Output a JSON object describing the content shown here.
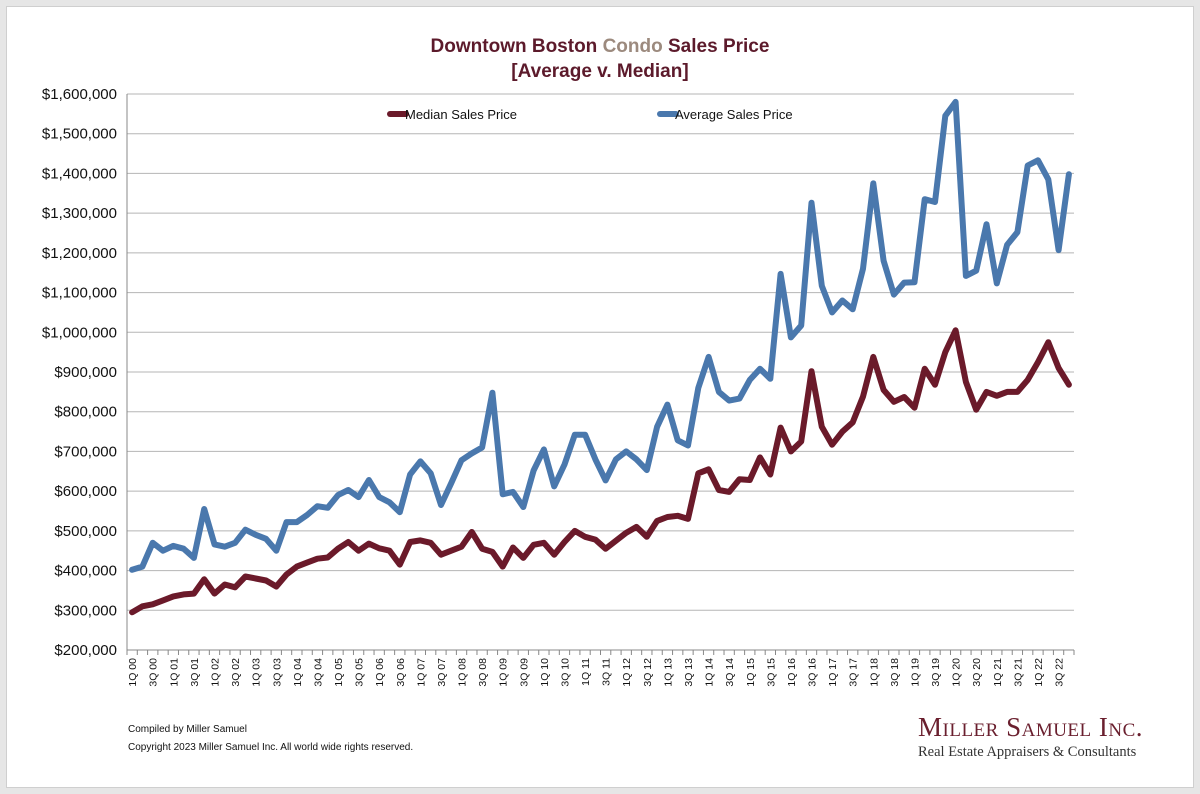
{
  "title": {
    "part1": "Downtown Boston ",
    "part2": "Condo",
    "part3": " Sales Price",
    "line2": "[Average v. Median]"
  },
  "footer": {
    "compiled": "Compiled by Miller Samuel",
    "copyright": "Copyright 2023 Miller Samuel Inc.  All world wide rights reserved."
  },
  "logo": {
    "name": "Miller Samuel Inc.",
    "tagline": "Real Estate Appraisers & Consultants"
  },
  "colors": {
    "median": "#6b1a2a",
    "average": "#4a78ad",
    "grid": "#b5b5b5",
    "title": "#5c1a2b",
    "title_accent": "#9c8a7e"
  },
  "chart_data": {
    "type": "line",
    "title": "Downtown Boston Condo Sales Price [Average v. Median]",
    "xlabel": "",
    "ylabel": "",
    "ylim": [
      200000,
      1600000
    ],
    "y_ticks": [
      200000,
      300000,
      400000,
      500000,
      600000,
      700000,
      800000,
      900000,
      1000000,
      1100000,
      1200000,
      1300000,
      1400000,
      1500000,
      1600000
    ],
    "y_tick_labels": [
      "$200,000",
      "$300,000",
      "$400,000",
      "$500,000",
      "$600,000",
      "$700,000",
      "$800,000",
      "$900,000",
      "$1,000,000",
      "$1,100,000",
      "$1,200,000",
      "$1,300,000",
      "$1,400,000",
      "$1,500,000",
      "$1,600,000"
    ],
    "grid": true,
    "legend_position": "top",
    "x": [
      "1Q 00",
      "2Q 00",
      "3Q 00",
      "4Q 00",
      "1Q 01",
      "2Q 01",
      "3Q 01",
      "4Q 01",
      "1Q 02",
      "2Q 02",
      "3Q 02",
      "4Q 02",
      "1Q 03",
      "2Q 03",
      "3Q 03",
      "4Q 03",
      "1Q 04",
      "2Q 04",
      "3Q 04",
      "4Q 04",
      "1Q 05",
      "2Q 05",
      "3Q 05",
      "4Q 05",
      "1Q 06",
      "2Q 06",
      "3Q 06",
      "4Q 06",
      "1Q 07",
      "2Q 07",
      "3Q 07",
      "4Q 07",
      "1Q 08",
      "2Q 08",
      "3Q 08",
      "4Q 08",
      "1Q 09",
      "2Q 09",
      "3Q 09",
      "4Q 09",
      "1Q 10",
      "2Q 10",
      "3Q 10",
      "4Q 10",
      "1Q 11",
      "2Q 11",
      "3Q 11",
      "4Q 11",
      "1Q 12",
      "2Q 12",
      "3Q 12",
      "4Q 12",
      "1Q 13",
      "2Q 13",
      "3Q 13",
      "4Q 13",
      "1Q 14",
      "2Q 14",
      "3Q 14",
      "4Q 14",
      "1Q 15",
      "2Q 15",
      "3Q 15",
      "4Q 15",
      "1Q 16",
      "2Q 16",
      "3Q 16",
      "4Q 16",
      "1Q 17",
      "2Q 17",
      "3Q 17",
      "4Q 17",
      "1Q 18",
      "2Q 18",
      "3Q 18",
      "4Q 18",
      "1Q 19",
      "2Q 19",
      "3Q 19",
      "4Q 19",
      "1Q 20",
      "2Q 20",
      "3Q 20",
      "4Q 20",
      "1Q 21",
      "2Q 21",
      "3Q 21",
      "4Q 21",
      "1Q 22",
      "2Q 22",
      "3Q 22",
      "4Q 22"
    ],
    "x_tick_labels": [
      "1Q 00",
      "3Q 00",
      "1Q 01",
      "3Q 01",
      "1Q 02",
      "3Q 02",
      "1Q 03",
      "3Q 03",
      "1Q 04",
      "3Q 04",
      "1Q 05",
      "3Q 05",
      "1Q 06",
      "3Q 06",
      "1Q 07",
      "3Q 07",
      "1Q 08",
      "3Q 08",
      "1Q 09",
      "3Q 09",
      "1Q 10",
      "3Q 10",
      "1Q 11",
      "3Q 11",
      "1Q 12",
      "3Q 12",
      "1Q 13",
      "3Q 13",
      "1Q 14",
      "3Q 14",
      "1Q 15",
      "3Q 15",
      "1Q 16",
      "3Q 16",
      "1Q 17",
      "3Q 17",
      "1Q 18",
      "3Q 18",
      "1Q 19",
      "3Q 19",
      "1Q 20",
      "3Q 20",
      "1Q 21",
      "3Q 21",
      "1Q 22",
      "3Q 22"
    ],
    "series": [
      {
        "name": "Median Sales Price",
        "values": [
          295000,
          310000,
          315000,
          325000,
          335000,
          340000,
          342000,
          378000,
          342000,
          365000,
          358000,
          385000,
          380000,
          375000,
          360000,
          390000,
          410000,
          420000,
          430000,
          433000,
          455000,
          472000,
          450000,
          468000,
          456000,
          450000,
          415000,
          472000,
          476000,
          470000,
          440000,
          450000,
          460000,
          497000,
          455000,
          447000,
          410000,
          458000,
          432000,
          465000,
          470000,
          440000,
          472000,
          500000,
          485000,
          478000,
          455000,
          475000,
          495000,
          510000,
          485000,
          525000,
          535000,
          538000,
          530000,
          645000,
          655000,
          603000,
          598000,
          630000,
          628000,
          685000,
          642000,
          760000,
          700000,
          725000,
          902000,
          762000,
          717000,
          750000,
          773000,
          838000,
          938000,
          855000,
          825000,
          837000,
          810000,
          908000,
          868000,
          950000,
          1005000,
          875000,
          805000,
          850000,
          840000,
          850000,
          850000,
          880000,
          925000,
          975000,
          910000,
          868000
        ]
      },
      {
        "name": "Average Sales Price",
        "values": [
          402000,
          410000,
          470000,
          450000,
          462000,
          455000,
          432000,
          555000,
          466000,
          460000,
          470000,
          503000,
          490000,
          480000,
          450000,
          522000,
          522000,
          540000,
          562000,
          558000,
          590000,
          603000,
          585000,
          628000,
          585000,
          572000,
          547000,
          642000,
          675000,
          645000,
          565000,
          620000,
          678000,
          695000,
          710000,
          848000,
          592000,
          598000,
          560000,
          652000,
          705000,
          612000,
          667000,
          742000,
          742000,
          680000,
          627000,
          680000,
          700000,
          680000,
          653000,
          762000,
          818000,
          728000,
          715000,
          860000,
          938000,
          850000,
          828000,
          833000,
          880000,
          908000,
          883000,
          1147000,
          987000,
          1017000,
          1326000,
          1117000,
          1050000,
          1080000,
          1058000,
          1160000,
          1375000,
          1180000,
          1095000,
          1125000,
          1126000,
          1335000,
          1328000,
          1545000,
          1580000,
          1142000,
          1155000,
          1272000,
          1123000,
          1220000,
          1252000,
          1420000,
          1433000,
          1385000,
          1207000,
          1398000
        ]
      }
    ]
  }
}
